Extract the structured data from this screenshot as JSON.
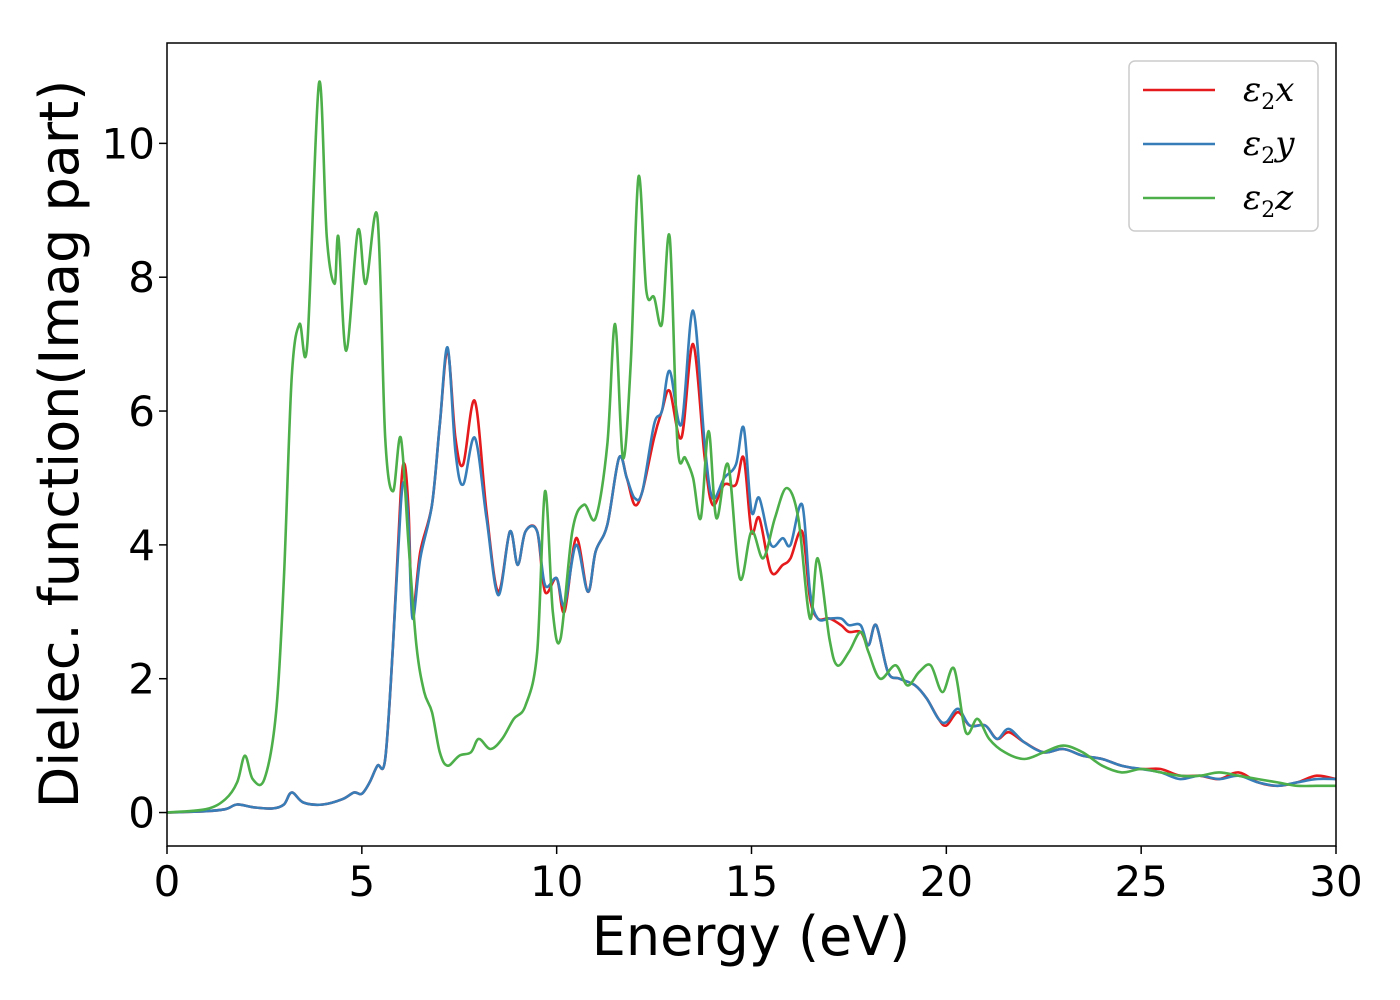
{
  "chart_data": {
    "type": "line",
    "title": "",
    "xlabel": "Energy (eV)",
    "ylabel": "Dielec. function(Imag part)",
    "xlim": [
      0,
      30
    ],
    "ylim": [
      -0.5,
      11.5
    ],
    "xticks": [
      "0",
      "5",
      "10",
      "15",
      "20",
      "25",
      "30"
    ],
    "yticks": [
      "0",
      "2",
      "4",
      "6",
      "8",
      "10"
    ],
    "grid": false,
    "legend_position": "top-right",
    "series": [
      {
        "name": "ε2x",
        "legend": {
          "base": "ε",
          "sub": "2",
          "rest": "x"
        },
        "color": "#e41a1c",
        "x": [
          0,
          1,
          1.5,
          1.8,
          2.2,
          2.7,
          3.0,
          3.2,
          3.5,
          4.0,
          4.5,
          4.8,
          5.0,
          5.2,
          5.4,
          5.6,
          5.8,
          6.0,
          6.1,
          6.2,
          6.3,
          6.5,
          6.8,
          7.0,
          7.2,
          7.4,
          7.6,
          7.9,
          8.2,
          8.5,
          8.8,
          9.0,
          9.2,
          9.5,
          9.7,
          10.0,
          10.2,
          10.5,
          10.8,
          11.0,
          11.3,
          11.6,
          11.8,
          12.0,
          12.2,
          12.5,
          12.7,
          12.9,
          13.2,
          13.5,
          13.8,
          14.0,
          14.3,
          14.6,
          14.8,
          15.0,
          15.2,
          15.5,
          15.8,
          16.0,
          16.3,
          16.5,
          16.7,
          17.0,
          17.3,
          17.5,
          17.8,
          18.0,
          18.2,
          18.5,
          18.8,
          19.2,
          19.5,
          19.8,
          20.0,
          20.3,
          20.6,
          21.0,
          21.3,
          21.6,
          22.0,
          22.5,
          23.0,
          23.5,
          24.0,
          24.5,
          25.0,
          25.5,
          26.0,
          26.5,
          27.0,
          27.5,
          28.0,
          28.5,
          29.0,
          29.5,
          30.0
        ],
        "values": [
          0,
          0.02,
          0.05,
          0.12,
          0.08,
          0.06,
          0.12,
          0.3,
          0.15,
          0.12,
          0.2,
          0.3,
          0.28,
          0.45,
          0.7,
          0.8,
          2.5,
          4.8,
          5.2,
          4.5,
          3.0,
          3.9,
          4.6,
          5.8,
          6.9,
          5.6,
          5.2,
          6.15,
          4.5,
          3.3,
          4.2,
          3.7,
          4.2,
          4.2,
          3.3,
          3.5,
          3.0,
          4.1,
          3.3,
          3.9,
          4.3,
          5.3,
          5.0,
          4.6,
          4.8,
          5.6,
          6.0,
          6.3,
          5.6,
          7.0,
          5.3,
          4.6,
          4.9,
          4.9,
          5.3,
          4.2,
          4.4,
          3.6,
          3.7,
          3.8,
          4.2,
          3.2,
          2.9,
          2.9,
          2.8,
          2.7,
          2.7,
          2.5,
          2.8,
          2.1,
          2.0,
          1.9,
          1.7,
          1.4,
          1.3,
          1.5,
          1.3,
          1.3,
          1.1,
          1.2,
          1.05,
          0.9,
          0.95,
          0.85,
          0.8,
          0.7,
          0.65,
          0.65,
          0.55,
          0.55,
          0.5,
          0.6,
          0.45,
          0.4,
          0.45,
          0.55,
          0.5
        ]
      },
      {
        "name": "ε2y",
        "legend": {
          "base": "ε",
          "sub": "2",
          "rest": "y"
        },
        "color": "#377eb8",
        "x": [
          0,
          1,
          1.5,
          1.8,
          2.2,
          2.7,
          3.0,
          3.2,
          3.5,
          4.0,
          4.5,
          4.8,
          5.0,
          5.2,
          5.4,
          5.6,
          5.8,
          6.0,
          6.1,
          6.2,
          6.3,
          6.5,
          6.8,
          7.0,
          7.2,
          7.4,
          7.6,
          7.9,
          8.2,
          8.5,
          8.8,
          9.0,
          9.2,
          9.5,
          9.7,
          10.0,
          10.2,
          10.5,
          10.8,
          11.0,
          11.3,
          11.6,
          11.8,
          12.0,
          12.2,
          12.5,
          12.7,
          12.9,
          13.2,
          13.5,
          13.8,
          14.0,
          14.3,
          14.6,
          14.8,
          15.0,
          15.2,
          15.5,
          15.8,
          16.0,
          16.3,
          16.5,
          16.7,
          17.0,
          17.3,
          17.5,
          17.8,
          18.0,
          18.2,
          18.5,
          18.8,
          19.2,
          19.5,
          19.8,
          20.0,
          20.3,
          20.6,
          21.0,
          21.3,
          21.6,
          22.0,
          22.5,
          23.0,
          23.5,
          24.0,
          24.5,
          25.0,
          25.5,
          26.0,
          26.5,
          27.0,
          27.5,
          28.0,
          28.5,
          29.0,
          29.5,
          30.0
        ],
        "values": [
          0,
          0.02,
          0.05,
          0.12,
          0.08,
          0.06,
          0.12,
          0.3,
          0.15,
          0.12,
          0.2,
          0.3,
          0.28,
          0.45,
          0.7,
          0.8,
          2.5,
          4.6,
          4.9,
          4.3,
          2.9,
          3.8,
          4.6,
          5.8,
          6.95,
          5.4,
          4.9,
          5.6,
          4.4,
          3.25,
          4.2,
          3.7,
          4.2,
          4.2,
          3.4,
          3.5,
          3.1,
          4.0,
          3.3,
          3.9,
          4.3,
          5.3,
          5.0,
          4.7,
          4.8,
          5.8,
          6.0,
          6.6,
          5.8,
          7.5,
          5.5,
          4.7,
          5.0,
          5.2,
          5.75,
          4.5,
          4.7,
          4.0,
          4.1,
          4.0,
          4.6,
          3.3,
          2.9,
          2.9,
          2.9,
          2.8,
          2.8,
          2.5,
          2.8,
          2.1,
          2.0,
          1.9,
          1.7,
          1.4,
          1.35,
          1.55,
          1.3,
          1.3,
          1.1,
          1.25,
          1.05,
          0.9,
          0.95,
          0.85,
          0.8,
          0.7,
          0.65,
          0.6,
          0.5,
          0.55,
          0.5,
          0.55,
          0.45,
          0.4,
          0.45,
          0.5,
          0.5
        ]
      },
      {
        "name": "ε2z",
        "legend": {
          "base": "ε",
          "sub": "2",
          "rest": "z"
        },
        "color": "#4daf4a",
        "x": [
          0,
          1,
          1.5,
          1.8,
          2.0,
          2.2,
          2.5,
          2.8,
          3.0,
          3.2,
          3.4,
          3.6,
          3.9,
          4.1,
          4.3,
          4.4,
          4.6,
          4.9,
          5.1,
          5.4,
          5.6,
          5.8,
          6.0,
          6.2,
          6.4,
          6.6,
          6.8,
          7.0,
          7.2,
          7.5,
          7.8,
          8.0,
          8.3,
          8.6,
          8.9,
          9.2,
          9.5,
          9.7,
          9.9,
          10.1,
          10.4,
          10.7,
          11.0,
          11.3,
          11.5,
          11.7,
          11.9,
          12.1,
          12.3,
          12.5,
          12.7,
          12.9,
          13.1,
          13.3,
          13.5,
          13.7,
          13.9,
          14.1,
          14.4,
          14.7,
          15.0,
          15.3,
          15.6,
          15.9,
          16.2,
          16.5,
          16.7,
          17.0,
          17.2,
          17.5,
          17.8,
          18.0,
          18.3,
          18.7,
          19.0,
          19.3,
          19.6,
          19.9,
          20.2,
          20.5,
          20.8,
          21.1,
          21.5,
          22.0,
          22.5,
          23.0,
          23.5,
          24.0,
          24.5,
          25.0,
          25.5,
          26.0,
          26.5,
          27.0,
          27.5,
          28.0,
          28.5,
          29.0,
          29.5,
          30.0
        ],
        "values": [
          0,
          0.05,
          0.2,
          0.45,
          0.85,
          0.5,
          0.5,
          1.5,
          3.5,
          6.5,
          7.3,
          7.0,
          10.9,
          8.6,
          7.9,
          8.6,
          6.9,
          8.7,
          7.9,
          8.9,
          5.6,
          4.8,
          5.6,
          4.0,
          2.5,
          1.8,
          1.5,
          0.9,
          0.7,
          0.85,
          0.9,
          1.1,
          0.95,
          1.1,
          1.4,
          1.6,
          2.4,
          4.8,
          3.0,
          2.6,
          4.2,
          4.6,
          4.4,
          5.5,
          7.3,
          5.3,
          6.7,
          9.5,
          7.8,
          7.7,
          7.3,
          8.6,
          5.5,
          5.3,
          5.0,
          4.4,
          5.7,
          4.4,
          5.2,
          3.5,
          4.2,
          3.8,
          4.4,
          4.85,
          4.4,
          2.9,
          3.8,
          2.6,
          2.2,
          2.4,
          2.7,
          2.4,
          2.0,
          2.2,
          1.9,
          2.1,
          2.2,
          1.8,
          2.15,
          1.2,
          1.4,
          1.1,
          0.9,
          0.8,
          0.9,
          1.0,
          0.9,
          0.7,
          0.6,
          0.65,
          0.6,
          0.55,
          0.55,
          0.6,
          0.55,
          0.5,
          0.45,
          0.4,
          0.4,
          0.4
        ]
      }
    ]
  }
}
